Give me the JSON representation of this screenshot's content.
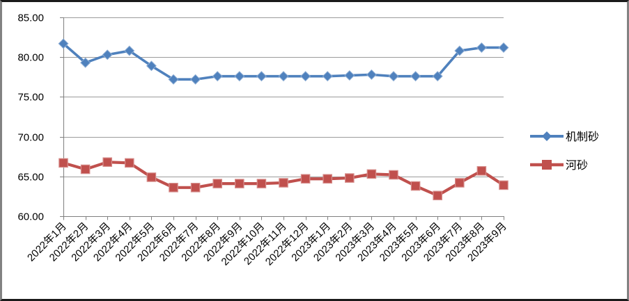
{
  "chart_data": {
    "type": "line",
    "categories": [
      "2022年1月",
      "2022年2月",
      "2022年3月",
      "2022年4月",
      "2022年5月",
      "2022年6月",
      "2022年7月",
      "2022年8月",
      "2022年9月",
      "2022年10月",
      "2022年11月",
      "2022年12月",
      "2023年1月",
      "2023年2月",
      "2023年3月",
      "2023年4月",
      "2023年5月",
      "2023年6月",
      "2023年7月",
      "2023年8月",
      "2023年9月"
    ],
    "series": [
      {
        "name": "机制砂",
        "slug": "machine-made-sand",
        "color": "#4F81BD",
        "marker": "diamond",
        "values": [
          81.7,
          79.3,
          80.3,
          80.8,
          78.9,
          77.2,
          77.2,
          77.6,
          77.6,
          77.6,
          77.6,
          77.6,
          77.6,
          77.7,
          77.8,
          77.6,
          77.6,
          77.6,
          80.8,
          81.2,
          81.2
        ]
      },
      {
        "name": "河砂",
        "slug": "river-sand",
        "color": "#C0504D",
        "marker": "square",
        "values": [
          66.7,
          65.9,
          66.8,
          66.7,
          64.9,
          63.6,
          63.6,
          64.1,
          64.1,
          64.1,
          64.2,
          64.7,
          64.7,
          64.8,
          65.3,
          65.2,
          63.8,
          62.6,
          64.2,
          65.7,
          63.9
        ]
      }
    ],
    "title": "",
    "xlabel": "",
    "ylabel": "",
    "ylim": [
      60,
      85
    ],
    "ytick_step": 5,
    "ytick_labels": [
      "60.00",
      "65.00",
      "70.00",
      "75.00",
      "80.00",
      "85.00"
    ],
    "grid": true,
    "legend_position": "right",
    "gridline_color": "#9B9B9B",
    "axis_color": "#7F7F7F",
    "text_color": "#000000"
  }
}
